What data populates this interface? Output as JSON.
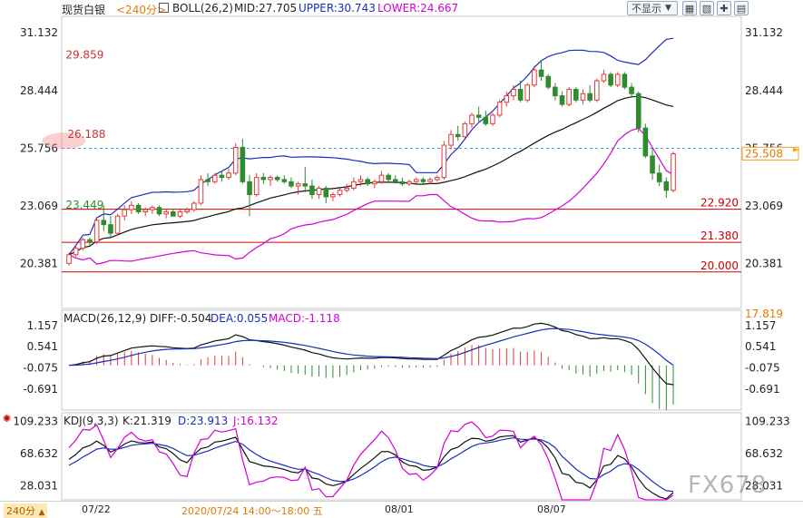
{
  "header": {
    "symbol": "现货白银",
    "period": "<240分>",
    "boll": "BOLL(26,2)",
    "mid": "MID:27.705",
    "upper": "UPPER:30.743",
    "lower": "LOWER:24.667",
    "display_dropdown": "不显示",
    "buttons": [
      "zoom-in",
      "zoom-out",
      "crosshair",
      "grid-settings"
    ]
  },
  "macd_header": {
    "label": "MACD(26,12,9)",
    "diff": "DIFF:-0.504",
    "dea": "DEA:0.055",
    "macd": "MACD:-1.118"
  },
  "kdj_header": {
    "label": "KDJ(9,3,3)",
    "k": "K:21.319",
    "d": "D:23.913",
    "j": "J:16.132"
  },
  "footer": {
    "period_selector": "240分",
    "dates": [
      "07/22",
      "08/01",
      "08/07"
    ],
    "cursor_time": "2020/07/24 14:00～18:00 五"
  },
  "watermark": "FX678",
  "colors": {
    "up": "#e03a3a",
    "down": "#2e8b2e",
    "boll_upper": "#1a2dbf",
    "boll_lower": "#d400d4",
    "boll_mid": "#111111",
    "level_line": "#d00000"
  },
  "chart_data": [
    {
      "type": "candlestick",
      "title": "现货白银 240分",
      "yticks": [
        31.132,
        28.444,
        25.756,
        23.069,
        20.381
      ],
      "ylim": [
        18.3,
        31.9
      ],
      "xticks": [
        "07/22",
        "08/01",
        "08/07"
      ],
      "current_price": 25.508,
      "dashed_price_line": 25.756,
      "annotations": {
        "high_1": 26.188,
        "high_2": 29.859,
        "low_1": 23.449
      },
      "horizontal_levels": [
        22.92,
        21.38,
        20.0
      ],
      "boll": {
        "mid": 27.705,
        "upper": 30.743,
        "lower": 24.667
      },
      "candles": [
        [
          20.4,
          20.9,
          20.3,
          20.8
        ],
        [
          20.8,
          21.3,
          20.7,
          21.1
        ],
        [
          21.1,
          21.6,
          21.0,
          21.5
        ],
        [
          21.5,
          21.6,
          21.2,
          21.4
        ],
        [
          21.4,
          22.5,
          21.3,
          22.4
        ],
        [
          22.4,
          23.1,
          21.9,
          22.2
        ],
        [
          22.2,
          22.6,
          21.6,
          21.8
        ],
        [
          21.8,
          22.7,
          21.7,
          22.6
        ],
        [
          22.6,
          23.1,
          22.4,
          22.9
        ],
        [
          22.9,
          23.3,
          22.7,
          23.1
        ],
        [
          23.1,
          23.2,
          22.7,
          22.8
        ],
        [
          22.8,
          23.0,
          22.6,
          22.9
        ],
        [
          22.9,
          23.1,
          22.7,
          23.0
        ],
        [
          23.0,
          23.1,
          22.6,
          22.7
        ],
        [
          22.7,
          22.9,
          22.5,
          22.8
        ],
        [
          22.8,
          22.9,
          22.6,
          22.6
        ],
        [
          22.6,
          22.9,
          22.5,
          22.8
        ],
        [
          22.8,
          23.0,
          22.7,
          22.9
        ],
        [
          22.9,
          23.3,
          22.8,
          23.2
        ],
        [
          23.2,
          24.5,
          23.1,
          24.3
        ],
        [
          24.3,
          24.6,
          24.0,
          24.2
        ],
        [
          24.2,
          24.6,
          24.1,
          24.5
        ],
        [
          24.5,
          24.7,
          24.2,
          24.4
        ],
        [
          24.4,
          24.8,
          24.3,
          24.6
        ],
        [
          24.6,
          26.0,
          24.5,
          25.8
        ],
        [
          25.8,
          26.19,
          24.1,
          24.2
        ],
        [
          24.2,
          24.5,
          22.6,
          23.6
        ],
        [
          23.6,
          24.6,
          23.5,
          24.4
        ],
        [
          24.4,
          24.6,
          24.1,
          24.3
        ],
        [
          24.3,
          24.5,
          24.0,
          24.4
        ],
        [
          24.4,
          24.5,
          24.2,
          24.3
        ],
        [
          24.3,
          24.5,
          24.1,
          24.2
        ],
        [
          24.2,
          24.4,
          23.9,
          24.0
        ],
        [
          24.0,
          24.2,
          23.6,
          24.1
        ],
        [
          24.1,
          24.9,
          23.7,
          24.0
        ],
        [
          24.0,
          24.3,
          23.4,
          23.6
        ],
        [
          23.6,
          24.0,
          23.4,
          23.9
        ],
        [
          23.9,
          24.0,
          23.2,
          23.5
        ],
        [
          23.5,
          23.7,
          23.3,
          23.6
        ],
        [
          23.6,
          23.9,
          23.5,
          23.8
        ],
        [
          23.8,
          24.1,
          23.7,
          23.9
        ],
        [
          23.9,
          24.4,
          23.8,
          24.2
        ],
        [
          24.2,
          24.5,
          24.0,
          24.3
        ],
        [
          24.3,
          24.4,
          24.0,
          24.1
        ],
        [
          24.1,
          24.3,
          23.9,
          24.2
        ],
        [
          24.2,
          24.7,
          24.1,
          24.5
        ],
        [
          24.5,
          24.6,
          24.2,
          24.3
        ],
        [
          24.3,
          24.5,
          24.1,
          24.2
        ],
        [
          24.2,
          24.4,
          24.0,
          24.1
        ],
        [
          24.1,
          24.3,
          24.0,
          24.2
        ],
        [
          24.2,
          24.4,
          24.1,
          24.3
        ],
        [
          24.3,
          24.4,
          24.1,
          24.2
        ],
        [
          24.2,
          24.4,
          24.1,
          24.3
        ],
        [
          24.3,
          24.5,
          24.2,
          24.4
        ],
        [
          24.4,
          26.1,
          24.3,
          25.9
        ],
        [
          25.9,
          26.6,
          25.7,
          26.4
        ],
        [
          26.4,
          26.8,
          26.1,
          26.3
        ],
        [
          26.3,
          27.0,
          26.2,
          26.9
        ],
        [
          26.9,
          27.4,
          26.7,
          27.3
        ],
        [
          27.3,
          27.7,
          27.0,
          27.2
        ],
        [
          27.2,
          27.5,
          26.8,
          26.9
        ],
        [
          26.9,
          27.4,
          26.8,
          27.3
        ],
        [
          27.3,
          28.0,
          27.2,
          27.9
        ],
        [
          27.9,
          28.4,
          27.7,
          28.2
        ],
        [
          28.2,
          28.7,
          28.0,
          28.5
        ],
        [
          28.5,
          28.9,
          27.9,
          28.0
        ],
        [
          28.0,
          28.8,
          27.9,
          28.7
        ],
        [
          28.7,
          29.6,
          28.6,
          29.4
        ],
        [
          29.4,
          29.86,
          28.9,
          29.1
        ],
        [
          29.1,
          29.2,
          28.5,
          28.6
        ],
        [
          28.6,
          28.8,
          28.0,
          28.2
        ],
        [
          28.2,
          28.4,
          27.7,
          27.8
        ],
        [
          27.8,
          28.6,
          27.7,
          28.5
        ],
        [
          28.5,
          28.6,
          27.9,
          28.0
        ],
        [
          28.0,
          28.5,
          27.8,
          28.3
        ],
        [
          28.3,
          28.7,
          27.9,
          28.0
        ],
        [
          28.0,
          29.0,
          27.9,
          28.9
        ],
        [
          28.9,
          29.4,
          28.8,
          29.2
        ],
        [
          29.2,
          29.3,
          28.6,
          28.7
        ],
        [
          28.7,
          29.3,
          28.6,
          29.2
        ],
        [
          29.2,
          29.3,
          28.5,
          28.6
        ],
        [
          28.6,
          28.8,
          28.1,
          28.3
        ],
        [
          28.3,
          28.4,
          26.5,
          26.7
        ],
        [
          26.7,
          26.9,
          25.3,
          25.4
        ],
        [
          25.4,
          25.8,
          24.3,
          24.6
        ],
        [
          24.6,
          25.0,
          24.0,
          24.2
        ],
        [
          24.2,
          24.4,
          23.45,
          23.8
        ],
        [
          23.8,
          25.6,
          23.7,
          25.5
        ]
      ]
    },
    {
      "type": "macd",
      "params": "26,12,9",
      "diff": -0.504,
      "dea": 0.055,
      "macd": -1.118,
      "yticks": [
        1.157,
        0.541,
        -0.075,
        -0.691
      ],
      "ylim": [
        -1.3,
        1.6
      ]
    },
    {
      "type": "kdj",
      "params": "9,3,3",
      "k": 21.319,
      "d": 23.913,
      "j": 16.132,
      "yticks": [
        109.233,
        68.632,
        28.031
      ],
      "ylim": [
        10,
        120
      ]
    }
  ]
}
